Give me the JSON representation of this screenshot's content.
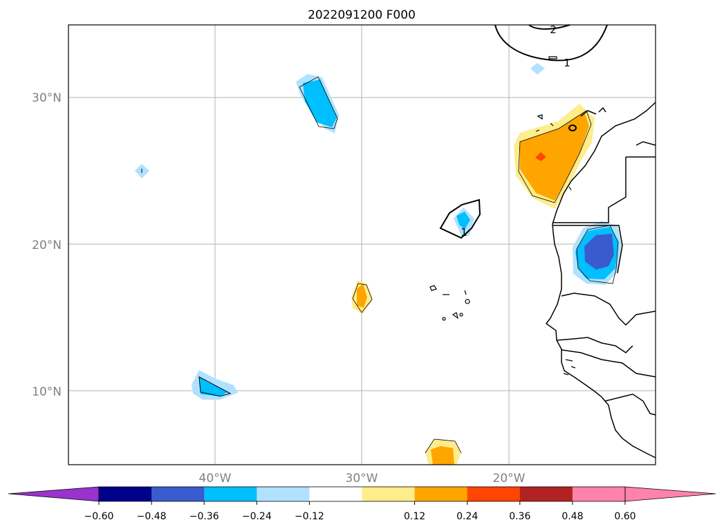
{
  "title": "2022091200 F000",
  "map": {
    "lat_labels": [
      "30°N",
      "20°N",
      "10°N"
    ],
    "lon_labels": [
      "40°W",
      "30°W",
      "20°W"
    ],
    "extent": {
      "lon": [
        -50,
        -10
      ],
      "lat": [
        5,
        35
      ]
    },
    "gridlines": true
  },
  "contour_labels": [
    "2",
    "1",
    "1"
  ],
  "colorbar": {
    "ticks": [
      "−0.60",
      "−0.48",
      "−0.36",
      "−0.24",
      "−0.12",
      "0.12",
      "0.24",
      "0.36",
      "0.48",
      "0.60"
    ],
    "colors": {
      "under": "#9a32cd",
      "bins": [
        "#00008b",
        "#3a5bcd",
        "#00bfff",
        "#b0e2ff",
        "#ffffff",
        "#ffec8b",
        "#ffa500",
        "#ff4500",
        "#b22222",
        "#ff82ab"
      ],
      "over": "#ff82ab"
    }
  },
  "fill_colors": {
    "blue_light": "#b0e2ff",
    "blue_mid": "#00bfff",
    "blue_dark": "#3a5bcd",
    "yellow": "#ffec8b",
    "orange": "#ffa500",
    "red": "#ff4500"
  }
}
